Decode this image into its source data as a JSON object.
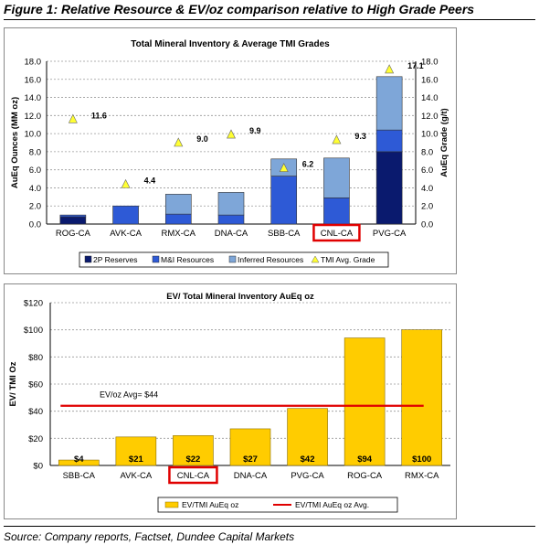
{
  "figure_title": "Figure 1: Relative Resource & EV/oz comparison relative to High Grade Peers",
  "source": "Source: Company reports, Factset, Dundee Capital Markets",
  "colors": {
    "reserves": "#0a1a6e",
    "mi": "#2e5ad6",
    "inferred": "#7ea6d8",
    "grade_marker": "#ffff33",
    "ev_bar": "#ffcc00",
    "avg_line": "#e00000",
    "highlight_box": "#e00000"
  },
  "chart_data": [
    {
      "type": "bar",
      "stacked": true,
      "title": "Total Mineral Inventory & Average TMI Grades",
      "ylabel": "AuEq Ounces (MM oz)",
      "y2label": "AuEq Grade (g/t)",
      "ylim": [
        0,
        18
      ],
      "y2lim": [
        0,
        18
      ],
      "yticks": [
        "0.0",
        "2.0",
        "4.0",
        "6.0",
        "8.0",
        "10.0",
        "12.0",
        "14.0",
        "16.0",
        "18.0"
      ],
      "categories": [
        "ROG-CA",
        "AVK-CA",
        "RMX-CA",
        "DNA-CA",
        "SBB-CA",
        "CNL-CA",
        "PVG-CA"
      ],
      "series": [
        {
          "name": "2P Reserves",
          "values": [
            0.8,
            0,
            0,
            0,
            0,
            0,
            8.0
          ]
        },
        {
          "name": "M&I Resources",
          "values": [
            0.2,
            2.0,
            1.1,
            1.0,
            5.3,
            2.9,
            2.4
          ]
        },
        {
          "name": "Inferred Resources",
          "values": [
            0,
            0,
            2.2,
            2.5,
            1.9,
            4.4,
            5.9
          ]
        }
      ],
      "grade_series": {
        "name": "TMI Avg. Grade",
        "values": [
          11.6,
          4.4,
          9.0,
          9.9,
          6.2,
          9.3,
          17.1
        ],
        "labels": [
          "11.6",
          "4.4",
          "9.0",
          "9.9",
          "6.2",
          "9.3",
          "17.1"
        ]
      },
      "highlight": "CNL-CA",
      "legend_position": "bottom"
    },
    {
      "type": "bar",
      "title": "EV/ Total Mineral Inventory AuEq oz",
      "ylabel": "EV/ TMI Oz",
      "ylim": [
        0,
        120
      ],
      "yticks": [
        "$0",
        "$20",
        "$40",
        "$60",
        "$80",
        "$100",
        "$120"
      ],
      "categories": [
        "SBB-CA",
        "AVK-CA",
        "CNL-CA",
        "DNA-CA",
        "PVG-CA",
        "ROG-CA",
        "RMX-CA"
      ],
      "series": [
        {
          "name": "EV/TMI AuEq oz",
          "values": [
            4,
            21,
            22,
            27,
            42,
            94,
            100
          ],
          "labels": [
            "$4",
            "$21",
            "$22",
            "$27",
            "$42",
            "$94",
            "$100"
          ]
        }
      ],
      "average": {
        "name": "EV/TMI AuEq oz Avg.",
        "value": 44,
        "label": "EV/oz Avg= $44"
      },
      "highlight": "CNL-CA",
      "legend_position": "bottom"
    }
  ]
}
